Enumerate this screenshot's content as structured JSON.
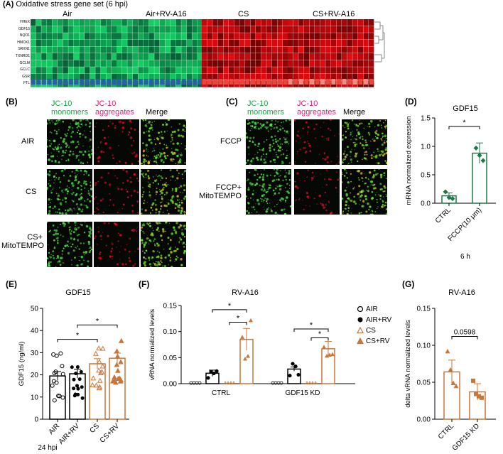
{
  "panelA": {
    "label": "(A)",
    "title": "Oxidative stress gene set (6 hpi)",
    "groups": [
      "Air",
      "Air+RV-A16",
      "CS",
      "CS+RV-A16"
    ],
    "genes": [
      "HHEX",
      "GDF15",
      "NQO1",
      "HMOX1",
      "SRXN1",
      "TXNRD1",
      "GCLM",
      "GCLC",
      "GSR",
      "FTL"
    ]
  },
  "panelB": {
    "label": "(B)",
    "col1a": "JC-10",
    "col1b": "monomers",
    "col2a": "JC-10",
    "col2b": "aggregates",
    "col3": "Merge",
    "rows": [
      "AIR",
      "CS",
      "CS+",
      "MitoTEMPO"
    ]
  },
  "panelC": {
    "label": "(C)",
    "col1a": "JC-10",
    "col1b": "monomers",
    "col2a": "JC-10",
    "col2b": "aggregates",
    "col3": "Merge",
    "rows": [
      "FCCP",
      "FCCP+",
      "MitoTEMPO"
    ]
  },
  "colors": {
    "green": "#22a14a",
    "magenta": "#d6247a",
    "air": "#2b5fa8",
    "cs": "#e8473c",
    "bar": "#c8763a",
    "dgreen": "#1b7a4a"
  },
  "chart_data": [
    {
      "panel": "(D)",
      "type": "bar",
      "title": "GDF15",
      "ylabel": "mRNA normalized expression",
      "categories": [
        "CTRL",
        "FCCP(10 μm)"
      ],
      "values": [
        0.13,
        0.88
      ],
      "errors": [
        0.05,
        0.18
      ],
      "points": [
        [
          0.2,
          0.1,
          0.08
        ],
        [
          0.97,
          0.84,
          0.75
        ]
      ],
      "ylim": [
        0,
        1.5
      ],
      "yticks": [
        "0.0",
        "0.5",
        "1.0",
        "1.5"
      ],
      "sig": "*",
      "xnote": "6 h"
    },
    {
      "panel": "(E)",
      "type": "bar",
      "title": "GDF15",
      "ylabel": "GDF15 (ng/ml)",
      "categories": [
        "AIR",
        "AIR+RV",
        "CS",
        "CS+RV"
      ],
      "values": [
        19.5,
        20.5,
        25,
        27.5
      ],
      "errors": [
        2,
        2,
        2.3,
        2.3
      ],
      "ylim": [
        0,
        50
      ],
      "yticks": [
        "0",
        "10",
        "20",
        "30",
        "40",
        "50"
      ],
      "sig": [
        "*",
        "*"
      ],
      "xnote": "24 hpi"
    },
    {
      "panel": "(F)",
      "type": "bar",
      "title": "RV-A16",
      "ylabel": "vRNA normalized levels",
      "categories": [
        "CTRL",
        "GDF15 KD"
      ],
      "series": [
        {
          "name": "AIR",
          "values": [
            0,
            0
          ]
        },
        {
          "name": "AIR+RV",
          "values": [
            0.02,
            0.028
          ]
        },
        {
          "name": "CS",
          "values": [
            0,
            0
          ]
        },
        {
          "name": "CS+RV",
          "values": [
            0.085,
            0.067
          ]
        }
      ],
      "errors_airrv": [
        0.006,
        0.004
      ],
      "errors_csrv": [
        0.021,
        0.014
      ],
      "ylim": [
        0,
        0.15
      ],
      "yticks": [
        "0.00",
        "0.05",
        "0.10",
        "0.15"
      ],
      "sig": "*"
    },
    {
      "panel": "(G)",
      "type": "bar",
      "title": "RV-A16",
      "ylabel": "delta vRNA normalized levels",
      "categories": [
        "CTRL",
        "GDF15 KD"
      ],
      "values": [
        0.064,
        0.037
      ],
      "errors": [
        0.016,
        0.011
      ],
      "points": [
        [
          0.092,
          0.067,
          0.049,
          0.045
        ],
        [
          0.052,
          0.034,
          0.031,
          0.029
        ]
      ],
      "ylim": [
        0,
        0.15
      ],
      "yticks": [
        "0.00",
        "0.05",
        "0.10",
        "0.15"
      ],
      "pvalue": "0.0598"
    }
  ]
}
